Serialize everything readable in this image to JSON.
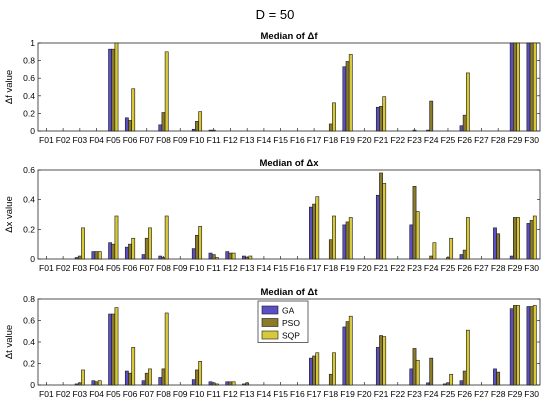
{
  "figure": {
    "suptitle": "D = 50"
  },
  "colors": {
    "GA": "#5a4fc4",
    "PSO": "#8a7a2a",
    "SQP": "#d8c83a",
    "edge": "#1a1a1a",
    "background": "#ffffff"
  },
  "chart_data": [
    {
      "type": "bar",
      "title": "Median of Δf",
      "xlabel": "",
      "ylabel": "Δf value",
      "ylim": [
        0,
        1
      ],
      "yticks": [
        0,
        0.2,
        0.4,
        0.6,
        0.8,
        1
      ],
      "ytick_labels": [
        "0",
        "0.2",
        "0.4",
        "0.6",
        "0.8",
        "1"
      ],
      "grid": false,
      "categories": [
        "F01",
        "F02",
        "F03",
        "F04",
        "F05",
        "F06",
        "F07",
        "F08",
        "F09",
        "F10",
        "F11",
        "F12",
        "F13",
        "F14",
        "F15",
        "F16",
        "F17",
        "F18",
        "F19",
        "F20",
        "F21",
        "F22",
        "F23",
        "F24",
        "F25",
        "F26",
        "F27",
        "F28",
        "F29",
        "F30"
      ],
      "series": [
        {
          "name": "GA",
          "values": [
            0,
            0,
            0,
            0,
            0.93,
            0.15,
            0,
            0.07,
            0,
            0.02,
            0.01,
            0,
            0,
            0,
            0,
            0,
            0,
            0,
            0.73,
            0,
            0.27,
            0,
            0,
            0.01,
            0,
            0.06,
            0,
            0,
            1,
            1
          ]
        },
        {
          "name": "PSO",
          "values": [
            0,
            0,
            0,
            0,
            0.93,
            0.12,
            0,
            0.21,
            0,
            0.11,
            0.01,
            0,
            0,
            0,
            0,
            0,
            0,
            0.08,
            0.79,
            0,
            0.28,
            0,
            0.01,
            0.34,
            0,
            0.18,
            0,
            0,
            1,
            1
          ]
        },
        {
          "name": "SQP",
          "values": [
            0,
            0,
            0,
            0,
            1,
            0.48,
            0,
            0.9,
            0,
            0.22,
            0,
            0,
            0,
            0,
            0,
            0,
            0,
            0.32,
            0.87,
            0,
            0.39,
            0,
            0,
            0,
            0,
            0.66,
            0,
            0,
            1,
            1
          ]
        }
      ]
    },
    {
      "type": "bar",
      "title": "Median of Δx",
      "xlabel": "",
      "ylabel": "Δx value",
      "ylim": [
        0,
        0.6
      ],
      "yticks": [
        0,
        0.2,
        0.4,
        0.6
      ],
      "ytick_labels": [
        "0",
        "0.2",
        "0.4",
        "0.6"
      ],
      "grid": false,
      "categories": [
        "F01",
        "F02",
        "F03",
        "F04",
        "F05",
        "F06",
        "F07",
        "F08",
        "F09",
        "F10",
        "F11",
        "F12",
        "F13",
        "F14",
        "F15",
        "F16",
        "F17",
        "F18",
        "F19",
        "F20",
        "F21",
        "F22",
        "F23",
        "F24",
        "F25",
        "F26",
        "F27",
        "F28",
        "F29",
        "F30"
      ],
      "series": [
        {
          "name": "GA",
          "values": [
            0,
            0,
            0.01,
            0.05,
            0.11,
            0.08,
            0.03,
            0.02,
            0,
            0.07,
            0.04,
            0.05,
            0.02,
            0,
            0,
            0,
            0.35,
            0,
            0.23,
            0,
            0.43,
            0,
            0.23,
            0,
            0,
            0.03,
            0,
            0.21,
            0.02,
            0.24
          ]
        },
        {
          "name": "PSO",
          "values": [
            0,
            0,
            0.02,
            0.05,
            0.1,
            0.1,
            0.14,
            0.01,
            0,
            0.16,
            0.03,
            0.04,
            0.01,
            0,
            0,
            0,
            0.37,
            0.13,
            0.25,
            0,
            0.58,
            0,
            0.49,
            0.02,
            0.01,
            0.06,
            0,
            0.17,
            0.28,
            0.26
          ]
        },
        {
          "name": "SQP",
          "values": [
            0,
            0,
            0.21,
            0.05,
            0.29,
            0.14,
            0.21,
            0.29,
            0,
            0.22,
            0.01,
            0.04,
            0.02,
            0,
            0,
            0,
            0.42,
            0.29,
            0.28,
            0,
            0.51,
            0,
            0.32,
            0.11,
            0.14,
            0.28,
            0,
            0,
            0.28,
            0.29
          ]
        }
      ]
    },
    {
      "type": "bar",
      "title": "Median of Δt",
      "xlabel": "",
      "ylabel": "Δt value",
      "ylim": [
        0,
        0.8
      ],
      "yticks": [
        0,
        0.2,
        0.4,
        0.6,
        0.8
      ],
      "ytick_labels": [
        "0",
        "0.2",
        "0.4",
        "0.6",
        "0.8"
      ],
      "grid": false,
      "legend": {
        "placement": "top-center",
        "entries": [
          "GA",
          "PSO",
          "SQP"
        ]
      },
      "categories": [
        "F01",
        "F02",
        "F03",
        "F04",
        "F05",
        "F06",
        "F07",
        "F08",
        "F09",
        "F10",
        "F11",
        "F12",
        "F13",
        "F14",
        "F15",
        "F16",
        "F17",
        "F18",
        "F19",
        "F20",
        "F21",
        "F22",
        "F23",
        "F24",
        "F25",
        "F26",
        "F27",
        "F28",
        "F29",
        "F30"
      ],
      "series": [
        {
          "name": "GA",
          "values": [
            0,
            0,
            0.01,
            0.04,
            0.66,
            0.13,
            0.04,
            0.07,
            0,
            0.05,
            0.03,
            0.03,
            0.01,
            0,
            0,
            0,
            0.25,
            0,
            0.54,
            0,
            0.35,
            0,
            0.15,
            0.02,
            0.01,
            0.04,
            0,
            0.15,
            0.71,
            0.73
          ]
        },
        {
          "name": "PSO",
          "values": [
            0,
            0,
            0.02,
            0.03,
            0.66,
            0.11,
            0.11,
            0.15,
            0,
            0.14,
            0.02,
            0.03,
            0.02,
            0,
            0,
            0,
            0.27,
            0.1,
            0.59,
            0,
            0.46,
            0,
            0.34,
            0.25,
            0.02,
            0.13,
            0,
            0.12,
            0.74,
            0.73
          ]
        },
        {
          "name": "SQP",
          "values": [
            0,
            0,
            0.14,
            0.04,
            0.72,
            0.35,
            0.15,
            0.67,
            0,
            0.22,
            0.01,
            0.03,
            0,
            0,
            0,
            0,
            0.3,
            0.3,
            0.64,
            0,
            0.45,
            0,
            0.23,
            0,
            0.1,
            0.51,
            0,
            0,
            0.74,
            0.74
          ]
        }
      ]
    }
  ]
}
